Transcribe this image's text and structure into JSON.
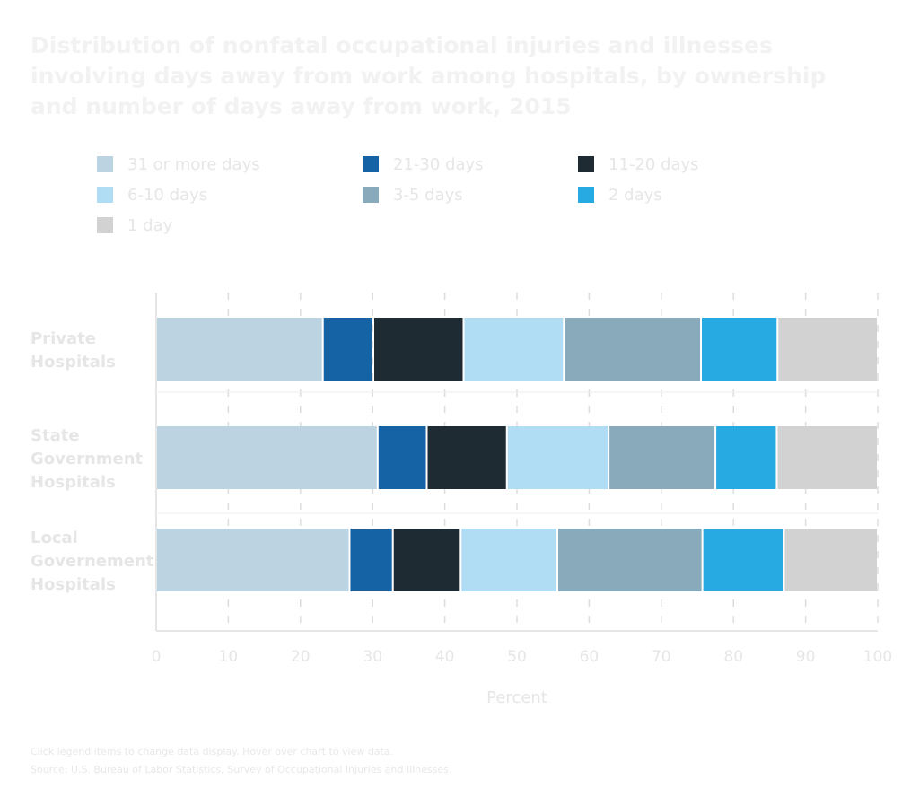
{
  "colors": {
    "31_or_more": "#bcd4e1",
    "21_30": "#1562a5",
    "11_20": "#1e2b33",
    "6_10": "#b0dcf4",
    "3_5": "#88aabb",
    "2_days": "#27a9e2",
    "1_day": "#d2d2d2",
    "text_light": "#e6e6e6",
    "grid": "#dddddd"
  },
  "footer": {
    "note": "Click legend items to change data display. Hover over chart to view data.",
    "source": "Source: U.S. Bureau of Labor Statistics, Survey of Occupational Injuries and Illnesses."
  },
  "chart_data": {
    "type": "bar",
    "orientation": "horizontal",
    "stacked": true,
    "title": "Distribution of nonfatal occupational injuries and illnesses involving days away from work among hospitals, by ownership and number of days away from work, 2015",
    "xlabel": "Percent",
    "ylabel": "",
    "xlim": [
      0,
      100
    ],
    "xticks": [
      "0",
      "10",
      "20",
      "30",
      "40",
      "50",
      "60",
      "70",
      "80",
      "90",
      "100"
    ],
    "grid": "vertical dashed",
    "legend_position": "top",
    "categories": [
      [
        "Private",
        "Hospitals"
      ],
      [
        "State",
        "Government",
        "Hospitals"
      ],
      [
        "Local",
        "Governement",
        "Hospitals"
      ]
    ],
    "series": [
      {
        "name": "31 or more days",
        "color": "#bcd4e1",
        "values": [
          23.1,
          30.7,
          26.8
        ]
      },
      {
        "name": "21-30 days",
        "color": "#1562a5",
        "values": [
          7.0,
          6.8,
          6.0
        ]
      },
      {
        "name": "11-20 days",
        "color": "#1e2b33",
        "values": [
          12.5,
          11.1,
          9.4
        ]
      },
      {
        "name": "6-10 days",
        "color": "#b0dcf4",
        "values": [
          13.9,
          14.1,
          13.4
        ]
      },
      {
        "name": "3-5 days",
        "color": "#88aabb",
        "values": [
          19.0,
          14.8,
          20.1
        ]
      },
      {
        "name": "2 days",
        "color": "#27a9e2",
        "values": [
          10.6,
          8.5,
          11.3
        ]
      },
      {
        "name": "1 day",
        "color": "#d2d2d2",
        "values": [
          13.9,
          14.0,
          13.0
        ]
      }
    ]
  }
}
